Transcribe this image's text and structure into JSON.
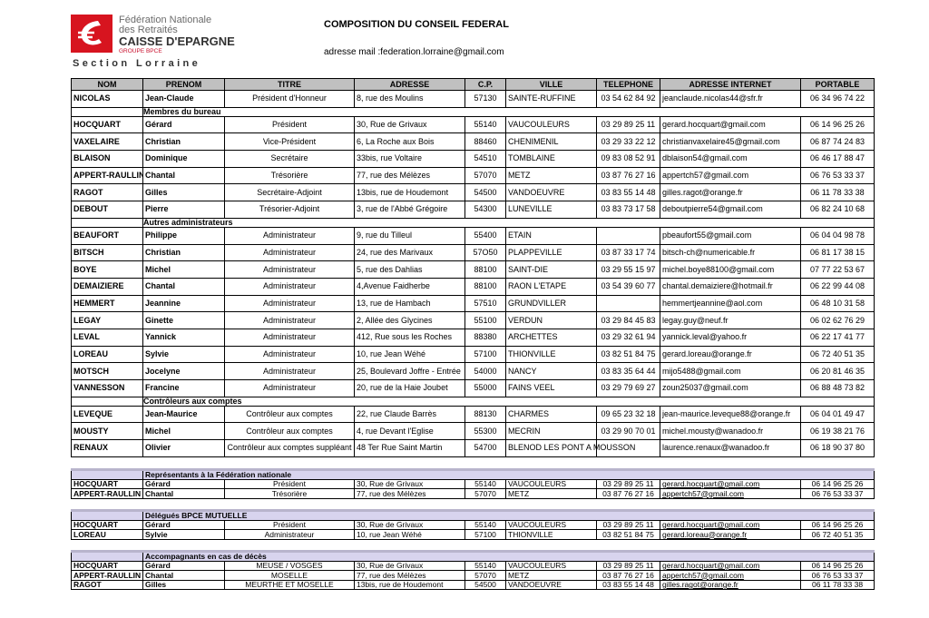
{
  "header": {
    "org_lines": [
      "Fédération Nationale",
      "des Retraités",
      "CAISSE D'EPARGNE",
      "GROUPE BPCE"
    ],
    "section": "Section Lorraine",
    "title": "COMPOSITION DU CONSEIL FEDERAL",
    "email": "adresse mail :federation.lorraine@gmail.com"
  },
  "table": {
    "columns": [
      "NOM",
      "PRENOM",
      "TITRE",
      "ADRESSE",
      "C.P.",
      "VILLE",
      "TELEPHONE",
      "ADRESSE INTERNET",
      "PORTABLE"
    ],
    "sections": [
      {
        "rows": [
          {
            "nom": "NICOLAS",
            "prenom": "Jean-Claude",
            "titre": "Président d'Honneur",
            "adresse": "8, rue des Moulins",
            "cp": "57130",
            "ville": "SAINTE-RUFFINE",
            "telephone": "03 54 62 84 92",
            "internet": "jeanclaude.nicolas44@sfr.fr",
            "portable": "06 34 96 74 22"
          }
        ]
      },
      {
        "label": "Membres du bureau",
        "rows": [
          {
            "nom": "HOCQUART",
            "prenom": "Gérard",
            "titre": "Président",
            "adresse": "30,  Rue de Grivaux",
            "cp": "55140",
            "ville": "VAUCOULEURS",
            "telephone": "03 29 89 25 11",
            "internet": "gerard.hocquart@gmail.com",
            "portable": "06 14 96 25 26"
          },
          {
            "nom": "VAXELAIRE",
            "prenom": "Christian",
            "titre": "Vice-Président",
            "adresse": "6, La Roche aux Bois",
            "cp": "88460",
            "ville": "CHENIMENIL",
            "telephone": "03 29 33 22 12",
            "internet": "christianvaxelaire45@gmail.com",
            "portable": "06 87 74 24 83"
          },
          {
            "nom": "BLAISON",
            "prenom": "Dominique",
            "titre": "Secrétaire",
            "adresse": "33bis, rue Voltaire",
            "cp": "54510",
            "ville": "TOMBLAINE",
            "telephone": "09 83 08 52 91",
            "internet": "dblaison54@gmail.com",
            "portable": "06 46 17 88 47"
          },
          {
            "nom": "APPERT-RAULLIN",
            "prenom": "Chantal",
            "titre": "Trésorière",
            "adresse": "77, rue des Mélèzes",
            "cp": "57070",
            "ville": "METZ",
            "telephone": "03 87 76 27 16",
            "internet": "appertch57@gmail.com",
            "portable": "06 76 53 33 37"
          },
          {
            "nom": "RAGOT",
            "prenom": "Gilles",
            "titre": "Secrétaire-Adjoint",
            "adresse": "13bis, rue de Houdemont",
            "cp": "54500",
            "ville": "VANDOEUVRE",
            "telephone": "03 83 55 14 48",
            "internet": "gilles.ragot@orange.fr",
            "portable": "06 11 78 33 38"
          },
          {
            "nom": "DEBOUT",
            "prenom": "Pierre",
            "titre": "Trésorier-Adjoint",
            "adresse": "3, rue de l'Abbé Grégoire",
            "cp": "54300",
            "ville": "LUNEVILLE",
            "telephone": "03 83 73 17 58",
            "internet": "deboutpierre54@gmail.com",
            "portable": "06 82 24 10 68"
          }
        ]
      },
      {
        "label": "Autres administrateurs",
        "rows": [
          {
            "nom": "BEAUFORT",
            "prenom": "Philippe",
            "titre": "Administrateur",
            "adresse": "9, rue du Tilleul",
            "cp": "55400",
            "ville": "ETAIN",
            "internet": "pbeaufort55@gmail.com",
            "portable": "06 04 04 98 78"
          },
          {
            "nom": "BITSCH",
            "prenom": "Christian",
            "titre": "Administrateur",
            "adresse": "24, rue des Marivaux",
            "cp": "57O50",
            "ville": "PLAPPEVILLE",
            "telephone": "03 87 33 17 74",
            "internet": "bitsch-ch@numericable.fr",
            "portable": "06 81 17 38 15"
          },
          {
            "nom": "BOYE",
            "prenom": "Michel",
            "titre": "Administrateur",
            "adresse": "5, rue des Dahlias",
            "cp": "88100",
            "ville": "SAINT-DIE",
            "telephone": "03 29 55 15 97",
            "internet": "michel.boye88100@gmail.com",
            "portable": "07 77 22 53 67"
          },
          {
            "nom": "DEMAIZIERE",
            "prenom": "Chantal",
            "titre": "Administrateur",
            "adresse": "4,Avenue Faidherbe",
            "cp": "88100",
            "ville": "RAON L'ETAPE",
            "telephone": "03 54 39 60 77",
            "internet": "chantal.demaiziere@hotmail.fr",
            "portable": "06 22 99 44 08"
          },
          {
            "nom": "HEMMERT",
            "prenom": "Jeannine",
            "titre": "Administrateur",
            "adresse": "13, rue de Hambach",
            "cp": "57510",
            "ville": "GRUNDVILLER",
            "internet": "hemmertjeannine@aol.com",
            "portable": "06 48 10 31 58"
          },
          {
            "nom": "LEGAY",
            "prenom": "Ginette",
            "titre": "Administrateur",
            "adresse": "2, Allée des Glycines",
            "cp": "55100",
            "ville": "VERDUN",
            "telephone": "03 29 84 45 83",
            "internet": "legay.guy@neuf.fr",
            "portable": "06 02 62 76 29"
          },
          {
            "nom": "LEVAL",
            "prenom": "Yannick",
            "titre": "Administrateur",
            "adresse": "412, Rue sous les Roches",
            "cp": "88380",
            "ville": "ARCHETTES",
            "telephone": "03 29 32 61 94",
            "internet": "yannick.leval@yahoo.fr",
            "portable": "06 22 17 41 77"
          },
          {
            "nom": "LOREAU",
            "prenom": "Sylvie",
            "titre": "Administrateur",
            "adresse": "10, rue Jean Wéhé",
            "cp": "57100",
            "ville": "THIONVILLE",
            "telephone": "03 82 51 84 75",
            "internet": "gerard.loreau@orange.fr",
            "portable": "06 72 40 51 35"
          },
          {
            "nom": "MOTSCH",
            "prenom": "Jocelyne",
            "titre": "Administrateur",
            "adresse": "25, Boulevard Joffre - Entrée",
            "cp": "54000",
            "ville": "NANCY",
            "telephone": "03 83 35 64 44",
            "internet": "mijo5488@gmail.com",
            "portable": "06 20 81 46 35"
          },
          {
            "nom": "VANNESSON",
            "prenom": "Francine",
            "titre": "Administrateur",
            "adresse": "20, rue de la Haie Joubet",
            "cp": "55000",
            "ville": "FAINS VEEL",
            "telephone": "03 29 79 69 27",
            "internet": "zoun25037@gmail.com",
            "portable": "06 88 48 73 82"
          }
        ]
      },
      {
        "label": "Contrôleurs aux comptes",
        "rows": [
          {
            "nom": "LEVEQUE",
            "prenom": "Jean-Maurice",
            "titre": "Contrôleur aux comptes",
            "adresse": "22, rue Claude Barrès",
            "cp": "88130",
            "ville": "CHARMES",
            "telephone": "09 65 23 32 18",
            "internet": "jean-maurice.leveque88@orange.fr",
            "portable": "06 04 01 49 47"
          },
          {
            "nom": "MOUSTY",
            "prenom": "Michel",
            "titre": "Contrôleur aux comptes",
            "adresse": "4, rue Devant l'Eglise",
            "cp": "55300",
            "ville": "MECRIN",
            "telephone": "03 29 90 70 01",
            "internet": "michel.mousty@wanadoo.fr",
            "portable": "06 19 38 21 76"
          },
          {
            "nom": "RENAUX",
            "prenom": "Olivier",
            "titre": "Contrôleur aux comptes suppléant",
            "adresse": "48 Ter Rue Saint Martin",
            "cp": "54700",
            "ville": "BLENOD LES PONT A MOUSSON",
            "internet": "laurence.renaux@wanadoo.fr",
            "portable": "06 18 90 37 80"
          }
        ]
      }
    ]
  },
  "delegations": [
    {
      "label": "Représentants à la Fédération nationale",
      "rows": [
        {
          "nom": "HOCQUART",
          "prenom": "Gérard",
          "titre": "Président",
          "adresse": "30,  Rue de Grivaux",
          "cp": "55140",
          "ville": "VAUCOULEURS",
          "telephone": "03 29 89 25 11",
          "internet": "gerard.hocquart@gmail.com",
          "portable": "06 14 96 25 26"
        },
        {
          "nom": "APPERT-RAULLIN",
          "prenom": "Chantal",
          "titre": "Trésorière",
          "adresse": "77, rue des Mélèzes",
          "cp": "57070",
          "ville": "METZ",
          "telephone": "03 87 76 27 16",
          "internet": "appertch57@gmail.com",
          "portable": "06 76 53 33 37"
        }
      ]
    },
    {
      "label": "Délégués BPCE MUTUELLE",
      "rows": [
        {
          "nom": "HOCQUART",
          "prenom": "Gérard",
          "titre": "Président",
          "adresse": "30,  Rue de Grivaux",
          "cp": "55140",
          "ville": "VAUCOULEURS",
          "telephone": "03 29 89 25 11",
          "internet": "gerard.hocquart@gmail.com",
          "portable": "06 14 96 25 26"
        },
        {
          "nom": "LOREAU",
          "prenom": "Sylvie",
          "titre": "Administrateur",
          "adresse": "10, rue Jean Wéhé",
          "cp": "57100",
          "ville": "THIONVILLE",
          "telephone": "03 82 51 84 75",
          "internet": "gerard.loreau@orange.fr",
          "portable": "06 72 40 51 35"
        }
      ]
    },
    {
      "label": "Accompagnants en cas de décès",
      "rows": [
        {
          "nom": "HOCQUART",
          "prenom": "Gérard",
          "titre": "MEUSE / VOSGES",
          "adresse": "30,  Rue de Grivaux",
          "cp": "55140",
          "ville": "VAUCOULEURS",
          "telephone": "03 29 89 25 11",
          "internet": "gerard.hocquart@gmail.com",
          "portable": "06 14 96 25 26"
        },
        {
          "nom": "APPERT-RAULLIN",
          "prenom": "Chantal",
          "titre": "MOSELLE",
          "adresse": "77, rue des Mélèzes",
          "cp": "57070",
          "ville": "METZ",
          "telephone": "03 87 76 27 16",
          "internet": "appertch57@gmail.com",
          "portable": "06 76 53 33 37"
        },
        {
          "nom": "RAGOT",
          "prenom": "Gilles",
          "titre": "MEURTHE ET MOSELLE",
          "adresse": "13bis, rue de Houdemont",
          "cp": "54500",
          "ville": "VANDOEUVRE",
          "telephone": "03 83 55 14 48",
          "internet": "gilles.ragot@orange.fr",
          "portable": "06 11 78 33 38"
        }
      ]
    }
  ]
}
